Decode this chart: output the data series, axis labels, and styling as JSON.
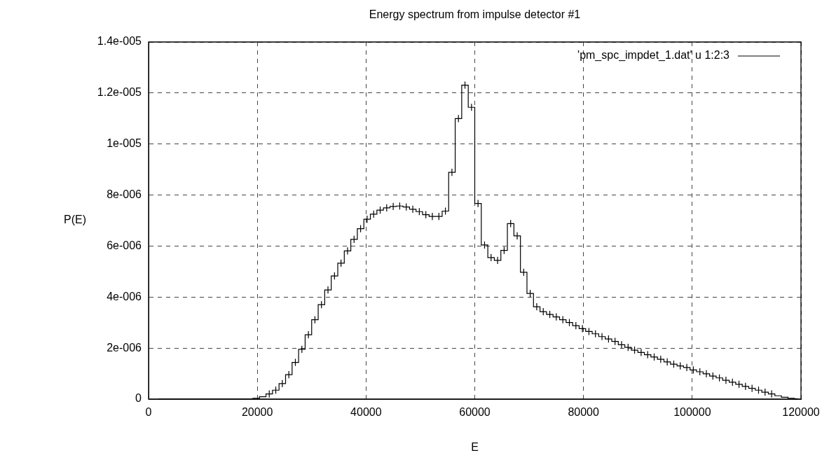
{
  "chart_data": {
    "type": "step",
    "title": "Energy spectrum from impulse detector #1",
    "xlabel": "E",
    "ylabel": "P(E)",
    "x": [
      1800,
      3000,
      4200,
      5400,
      6600,
      7800,
      9000,
      10200,
      11400,
      12600,
      13800,
      15000,
      16200,
      17400,
      18600,
      19800,
      21000,
      22200,
      23400,
      24600,
      25800,
      27000,
      28200,
      29400,
      30600,
      31800,
      33000,
      34200,
      35400,
      36600,
      37800,
      39000,
      40200,
      41400,
      42600,
      43800,
      45000,
      46200,
      47400,
      48600,
      49800,
      51000,
      52200,
      53400,
      54600,
      55800,
      57000,
      58200,
      59400,
      60600,
      61800,
      63000,
      64200,
      65400,
      66600,
      67800,
      69000,
      70200,
      71400,
      72600,
      73800,
      75000,
      76200,
      77400,
      78600,
      79800,
      81000,
      82200,
      83400,
      84600,
      85800,
      87000,
      88200,
      89400,
      90600,
      91800,
      93000,
      94200,
      95400,
      96600,
      97800,
      99000,
      100200,
      101400,
      102600,
      103800,
      105000,
      106200,
      107400,
      108600,
      109800,
      111000,
      112200,
      113400,
      114600,
      115800,
      117000,
      118200,
      119400
    ],
    "series": [
      {
        "name": "'pm_spc_impdet_1.dat' u 1:2:3",
        "color": "#000000",
        "values": [
          0,
          0,
          0,
          0,
          0,
          0,
          0,
          0,
          0,
          0,
          0,
          0,
          0,
          0,
          0,
          3e-08,
          9e-08,
          2e-07,
          3.5e-07,
          6.1e-07,
          9.6e-07,
          1.44e-06,
          1.95e-06,
          2.52e-06,
          3.11e-06,
          3.7e-06,
          4.28e-06,
          4.83e-06,
          5.33e-06,
          5.81e-06,
          6.26e-06,
          6.68e-06,
          7.05e-06,
          7.25e-06,
          7.41e-06,
          7.5e-06,
          7.55e-06,
          7.57e-06,
          7.53e-06,
          7.44e-06,
          7.35e-06,
          7.23e-06,
          7.16e-06,
          7.16e-06,
          7.37e-06,
          8.89e-06,
          1.1e-05,
          1.231e-05,
          1.144e-05,
          7.67e-06,
          6.04e-06,
          5.55e-06,
          5.44e-06,
          5.83e-06,
          6.88e-06,
          6.4e-06,
          4.97e-06,
          4.14e-06,
          3.62e-06,
          3.43e-06,
          3.32e-06,
          3.22e-06,
          3.11e-06,
          3e-06,
          2.88e-06,
          2.76e-06,
          2.65e-06,
          2.56e-06,
          2.45e-06,
          2.36e-06,
          2.26e-06,
          2.13e-06,
          2.03e-06,
          1.92e-06,
          1.83e-06,
          1.74e-06,
          1.65e-06,
          1.56e-06,
          1.46e-06,
          1.37e-06,
          1.3e-06,
          1.24e-06,
          1.14e-06,
          1.07e-06,
          9.9e-07,
          9e-07,
          8.3e-07,
          7.4e-07,
          6.6e-07,
          5.8e-07,
          5e-07,
          4.2e-07,
          3.5e-07,
          2.7e-07,
          2e-07,
          1.3e-07,
          7e-08,
          3e-08,
          1e-08
        ],
        "errors": [
          null,
          null,
          null,
          null,
          null,
          null,
          null,
          null,
          null,
          null,
          null,
          null,
          null,
          null,
          null,
          null,
          null,
          1.4e-07,
          1.4e-07,
          1.4e-07,
          1.4e-07,
          1.4e-07,
          1.4e-07,
          1.4e-07,
          1.4e-07,
          1.4e-07,
          1.4e-07,
          1.4e-07,
          1.4e-07,
          1.4e-07,
          1.4e-07,
          1.4e-07,
          1.4e-07,
          1.4e-07,
          1.4e-07,
          1.4e-07,
          1.4e-07,
          1.4e-07,
          1.4e-07,
          1.4e-07,
          1.4e-07,
          1.4e-07,
          1.4e-07,
          1.4e-07,
          1.4e-07,
          1.4e-07,
          1.4e-07,
          1.4e-07,
          1.4e-07,
          1.4e-07,
          1.4e-07,
          1.4e-07,
          1.4e-07,
          1.4e-07,
          1.4e-07,
          1.4e-07,
          1.4e-07,
          1.4e-07,
          1.4e-07,
          1.4e-07,
          1.4e-07,
          1.4e-07,
          1.4e-07,
          1.4e-07,
          1.4e-07,
          1.4e-07,
          1.4e-07,
          1.4e-07,
          1.4e-07,
          1.4e-07,
          1.4e-07,
          1.4e-07,
          1.4e-07,
          1.4e-07,
          1.4e-07,
          1.4e-07,
          1.4e-07,
          1.4e-07,
          1.4e-07,
          1.4e-07,
          1.4e-07,
          1.4e-07,
          1.4e-07,
          1.4e-07,
          1.4e-07,
          1.4e-07,
          1.4e-07,
          1.4e-07,
          1.4e-07,
          1.4e-07,
          1.4e-07,
          1.4e-07,
          1.4e-07,
          1.4e-07,
          1.4e-07,
          null,
          null,
          null,
          null
        ]
      }
    ],
    "xlim": [
      0,
      120000
    ],
    "xticks": [
      0,
      20000,
      40000,
      60000,
      80000,
      100000,
      120000
    ],
    "ylim": [
      0,
      1.4e-05
    ],
    "yticks": [
      0,
      {
        "value": 2e-06,
        "label": "2e-006"
      },
      {
        "value": 4e-06,
        "label": "4e-006"
      },
      {
        "value": 6e-06,
        "label": "6e-006"
      },
      {
        "value": 8e-06,
        "label": "8e-006"
      },
      {
        "value": 1e-05,
        "label": "1e-005"
      },
      {
        "value": 1.2e-05,
        "label": "1.2e-005"
      },
      {
        "value": 1.4e-05,
        "label": "1.4e-005"
      }
    ],
    "grid": true,
    "legend": "top right"
  }
}
